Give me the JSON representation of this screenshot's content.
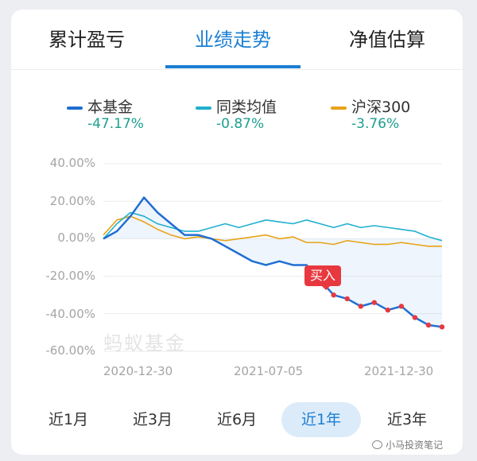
{
  "tabs": [
    {
      "label": "累计盈亏",
      "active": false
    },
    {
      "label": "业绩走势",
      "active": true
    },
    {
      "label": "净值估算",
      "active": false
    }
  ],
  "legend": [
    {
      "label": "本基金",
      "value": "-47.17%",
      "color": "#1f6fd2"
    },
    {
      "label": "同类均值",
      "value": "-0.87%",
      "color": "#1fb0cf"
    },
    {
      "label": "沪深300",
      "value": "-3.76%",
      "color": "#e8a317"
    }
  ],
  "watermark": "蚂蚁基金",
  "buy_label": "买入",
  "range_tabs": [
    {
      "label": "近1月",
      "active": false
    },
    {
      "label": "近3月",
      "active": false
    },
    {
      "label": "近6月",
      "active": false
    },
    {
      "label": "近1年",
      "active": true
    },
    {
      "label": "近3年",
      "active": false
    }
  ],
  "footer": "小马投资笔记",
  "chart_data": {
    "type": "line",
    "x_labels": [
      "2020-12-30",
      "2021-07-05",
      "2021-12-30"
    ],
    "y_labels": [
      "40.00%",
      "20.00%",
      "0.00%",
      "-20.00%",
      "-40.00%",
      "-60.00%"
    ],
    "ylim": [
      -60,
      40
    ],
    "grid": true,
    "series": [
      {
        "name": "本基金",
        "color": "#1f6fd2",
        "x": [
          0,
          4,
          8,
          12,
          16,
          20,
          24,
          28,
          32,
          36,
          40,
          44,
          48,
          52,
          56,
          60,
          64,
          68,
          72,
          76,
          80,
          84,
          88,
          92,
          96,
          100
        ],
        "y": [
          0,
          4,
          12,
          22,
          14,
          8,
          2,
          2,
          0,
          -4,
          -8,
          -12,
          -14,
          -12,
          -14,
          -14,
          -22,
          -30,
          -32,
          -36,
          -34,
          -38,
          -36,
          -42,
          -46,
          -47
        ]
      },
      {
        "name": "同类均值",
        "color": "#1fb0cf",
        "x": [
          0,
          4,
          8,
          12,
          16,
          20,
          24,
          28,
          32,
          36,
          40,
          44,
          48,
          52,
          56,
          60,
          64,
          68,
          72,
          76,
          80,
          84,
          88,
          92,
          96,
          100
        ],
        "y": [
          0,
          8,
          14,
          12,
          8,
          6,
          4,
          4,
          6,
          8,
          6,
          8,
          10,
          9,
          8,
          10,
          8,
          6,
          8,
          6,
          7,
          6,
          5,
          4,
          1,
          -1
        ]
      },
      {
        "name": "沪深300",
        "color": "#e8a317",
        "x": [
          0,
          4,
          8,
          12,
          16,
          20,
          24,
          28,
          32,
          36,
          40,
          44,
          48,
          52,
          56,
          60,
          64,
          68,
          72,
          76,
          80,
          84,
          88,
          92,
          96,
          100
        ],
        "y": [
          2,
          10,
          12,
          9,
          5,
          2,
          0,
          1,
          0,
          -1,
          0,
          1,
          2,
          0,
          1,
          -2,
          -2,
          -3,
          -1,
          -2,
          -3,
          -3,
          -2,
          -3,
          -4,
          -4
        ]
      }
    ]
  }
}
